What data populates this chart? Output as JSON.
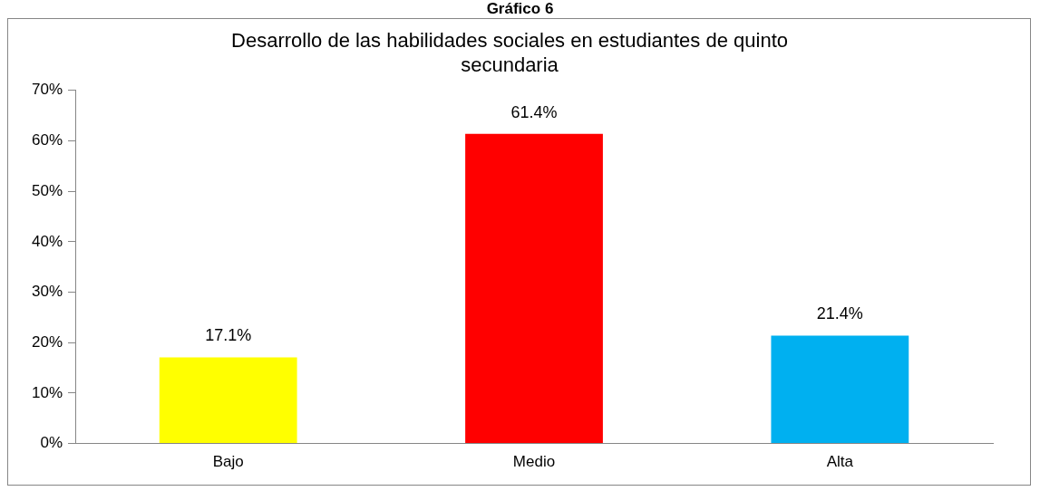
{
  "chart_data": {
    "type": "bar",
    "title": "Gráfico 6",
    "subtitle": "Desarrollo de las habilidades sociales en estudiantes de quinto secundaria",
    "categories": [
      "Bajo",
      "Medio",
      "Alta"
    ],
    "values": [
      17.1,
      61.4,
      21.4
    ],
    "colors": [
      "#ffff00",
      "#ff0000",
      "#00b0f0"
    ],
    "value_labels": [
      "17.1%",
      "61.4%",
      "21.4%"
    ],
    "ylim": [
      0,
      70
    ],
    "yticks": [
      {
        "value": 0,
        "label": "0%"
      },
      {
        "value": 10,
        "label": "10%"
      },
      {
        "value": 20,
        "label": "20%"
      },
      {
        "value": 30,
        "label": "30%"
      },
      {
        "value": 40,
        "label": "40%"
      },
      {
        "value": 50,
        "label": "50%"
      },
      {
        "value": 60,
        "label": "60%"
      },
      {
        "value": 70,
        "label": "70%"
      }
    ],
    "grid": false,
    "legend": false
  }
}
